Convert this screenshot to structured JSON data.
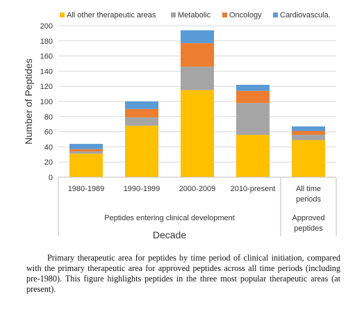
{
  "chart_data": {
    "type": "bar",
    "stacked": true,
    "categories": [
      "1980-1989",
      "1990-1999",
      "2000-2009",
      "2010-present",
      "All time periods"
    ],
    "series": [
      {
        "name": "All other therapeutic areas",
        "color": "#FFC000",
        "values": [
          31,
          68,
          115,
          56,
          49
        ]
      },
      {
        "name": "Metabolic",
        "color": "#A5A5A5",
        "values": [
          3,
          11,
          31,
          42,
          7
        ]
      },
      {
        "name": "Oncology",
        "color": "#ED7D31",
        "values": [
          3,
          11,
          31,
          16,
          5
        ]
      },
      {
        "name": "Cardiovascula.",
        "color": "#5B9BD5",
        "values": [
          7,
          10,
          17,
          8,
          6
        ]
      }
    ],
    "ylabel": "Number of Peptides",
    "xlabel": "Decade",
    "ylim": [
      0,
      200
    ],
    "yticks": [
      0,
      20,
      40,
      60,
      80,
      100,
      120,
      140,
      160,
      180,
      200
    ],
    "grid": true,
    "legend_position": "top",
    "group_labels": [
      {
        "text": "Peptides entering clinical development",
        "categories": [
          0,
          1,
          2,
          3
        ]
      },
      {
        "text": "Approved peptides",
        "categories": [
          4
        ]
      }
    ]
  },
  "caption": "Primary therapeutic area for peptides by time period of clinical initiation, compared with the primary therapeutic area for approved peptides across all time periods (including pre-1980). This figure highlights peptides in the three most popular therapeutic areas (at present)."
}
